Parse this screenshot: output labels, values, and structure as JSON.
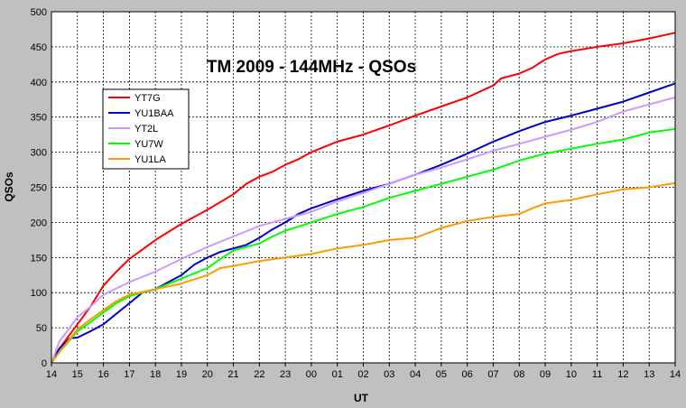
{
  "chart_data": {
    "type": "line",
    "title": "TM 2009 - 144MHz - QSOs",
    "xlabel": "UT",
    "ylabel": "QSOs",
    "ylim": [
      0,
      500
    ],
    "yticks": [
      0,
      50,
      100,
      150,
      200,
      250,
      300,
      350,
      400,
      450,
      500
    ],
    "x_tick_labels": [
      "14",
      "15",
      "16",
      "17",
      "18",
      "19",
      "20",
      "21",
      "22",
      "23",
      "00",
      "01",
      "02",
      "03",
      "04",
      "05",
      "06",
      "07",
      "08",
      "09",
      "10",
      "11",
      "12",
      "13",
      "14"
    ],
    "x_unit": "hours elapsed since 14 UT",
    "xlim": [
      0,
      24
    ],
    "grid": true,
    "legend_position": "upper-left",
    "series": [
      {
        "name": "YT7G",
        "color": "#ff0000",
        "points": [
          [
            0,
            0
          ],
          [
            0.3,
            20
          ],
          [
            1,
            55
          ],
          [
            1.5,
            80
          ],
          [
            2,
            110
          ],
          [
            2.5,
            130
          ],
          [
            3,
            148
          ],
          [
            4,
            175
          ],
          [
            5,
            198
          ],
          [
            6,
            218
          ],
          [
            7,
            240
          ],
          [
            7.5,
            255
          ],
          [
            8,
            265
          ],
          [
            8.5,
            272
          ],
          [
            9,
            282
          ],
          [
            9.5,
            290
          ],
          [
            10,
            300
          ],
          [
            11,
            315
          ],
          [
            12,
            325
          ],
          [
            13,
            338
          ],
          [
            14,
            352
          ],
          [
            15,
            365
          ],
          [
            16,
            378
          ],
          [
            17,
            395
          ],
          [
            17.3,
            405
          ],
          [
            18,
            412
          ],
          [
            18.5,
            420
          ],
          [
            19,
            432
          ],
          [
            19.5,
            440
          ],
          [
            20,
            444
          ],
          [
            21,
            450
          ],
          [
            22,
            455
          ],
          [
            23,
            462
          ],
          [
            24,
            470
          ]
        ]
      },
      {
        "name": "YU1BAA",
        "color": "#0000cc",
        "points": [
          [
            0,
            0
          ],
          [
            0.3,
            20
          ],
          [
            0.7,
            35
          ],
          [
            1,
            36
          ],
          [
            1.5,
            45
          ],
          [
            2,
            55
          ],
          [
            2.5,
            70
          ],
          [
            3,
            85
          ],
          [
            3.5,
            100
          ],
          [
            4,
            105
          ],
          [
            4.5,
            115
          ],
          [
            5,
            125
          ],
          [
            5.5,
            140
          ],
          [
            6,
            150
          ],
          [
            6.5,
            158
          ],
          [
            7,
            163
          ],
          [
            7.5,
            168
          ],
          [
            8,
            178
          ],
          [
            8.5,
            190
          ],
          [
            9,
            200
          ],
          [
            9.5,
            212
          ],
          [
            10,
            220
          ],
          [
            11,
            233
          ],
          [
            12,
            245
          ],
          [
            13,
            255
          ],
          [
            14,
            268
          ],
          [
            15,
            282
          ],
          [
            16,
            298
          ],
          [
            17,
            315
          ],
          [
            18,
            330
          ],
          [
            19,
            343
          ],
          [
            20,
            352
          ],
          [
            21,
            362
          ],
          [
            22,
            372
          ],
          [
            23,
            385
          ],
          [
            24,
            398
          ]
        ]
      },
      {
        "name": "YT2L",
        "color": "#cc99ff",
        "points": [
          [
            0,
            0
          ],
          [
            0.3,
            30
          ],
          [
            1,
            65
          ],
          [
            1.5,
            80
          ],
          [
            2,
            97
          ],
          [
            2.5,
            106
          ],
          [
            3,
            115
          ],
          [
            4,
            130
          ],
          [
            5,
            148
          ],
          [
            6,
            165
          ],
          [
            7,
            180
          ],
          [
            8,
            195
          ],
          [
            9,
            205
          ],
          [
            10,
            215
          ],
          [
            11,
            230
          ],
          [
            12,
            242
          ],
          [
            13,
            255
          ],
          [
            14,
            268
          ],
          [
            15,
            278
          ],
          [
            16,
            290
          ],
          [
            17,
            302
          ],
          [
            18,
            312
          ],
          [
            19,
            322
          ],
          [
            20,
            332
          ],
          [
            21,
            343
          ],
          [
            22,
            358
          ],
          [
            23,
            368
          ],
          [
            24,
            378
          ]
        ]
      },
      {
        "name": "YU7W",
        "color": "#00ff00",
        "points": [
          [
            0,
            0
          ],
          [
            0.3,
            15
          ],
          [
            1,
            45
          ],
          [
            1.5,
            58
          ],
          [
            2,
            72
          ],
          [
            2.5,
            85
          ],
          [
            3,
            95
          ],
          [
            4,
            105
          ],
          [
            5,
            120
          ],
          [
            6,
            135
          ],
          [
            6.5,
            148
          ],
          [
            7,
            160
          ],
          [
            8,
            170
          ],
          [
            8.5,
            180
          ],
          [
            9,
            188
          ],
          [
            10,
            200
          ],
          [
            11,
            212
          ],
          [
            12,
            222
          ],
          [
            13,
            235
          ],
          [
            14,
            245
          ],
          [
            15,
            255
          ],
          [
            16,
            265
          ],
          [
            17,
            275
          ],
          [
            18,
            288
          ],
          [
            19,
            298
          ],
          [
            20,
            305
          ],
          [
            21,
            312
          ],
          [
            22,
            318
          ],
          [
            23,
            328
          ],
          [
            24,
            333
          ]
        ]
      },
      {
        "name": "YU1LA",
        "color": "#ff9900",
        "points": [
          [
            0,
            0
          ],
          [
            0.3,
            15
          ],
          [
            1,
            48
          ],
          [
            1.5,
            62
          ],
          [
            2,
            75
          ],
          [
            2.5,
            88
          ],
          [
            3,
            97
          ],
          [
            4,
            105
          ],
          [
            5,
            113
          ],
          [
            6,
            125
          ],
          [
            6.5,
            135
          ],
          [
            7,
            138
          ],
          [
            8,
            145
          ],
          [
            9,
            150
          ],
          [
            10,
            155
          ],
          [
            11,
            163
          ],
          [
            12,
            168
          ],
          [
            13,
            175
          ],
          [
            14,
            178
          ],
          [
            15,
            192
          ],
          [
            16,
            202
          ],
          [
            17,
            208
          ],
          [
            18,
            212
          ],
          [
            18.5,
            220
          ],
          [
            19,
            227
          ],
          [
            20,
            232
          ],
          [
            21,
            240
          ],
          [
            22,
            247
          ],
          [
            23,
            250
          ],
          [
            24,
            256
          ]
        ]
      }
    ]
  }
}
